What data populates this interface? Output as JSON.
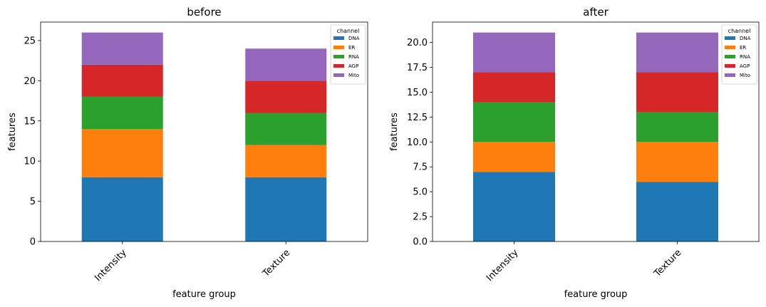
{
  "chart_data": [
    {
      "type": "bar",
      "stacked": true,
      "title": "before",
      "xlabel": "feature group",
      "ylabel": "features",
      "categories": [
        "Intensity",
        "Texture"
      ],
      "ylim": [
        0,
        27.3
      ],
      "yticks": [
        0,
        5,
        10,
        15,
        20,
        25
      ],
      "ytick_labels": [
        "0",
        "5",
        "10",
        "15",
        "20",
        "25"
      ],
      "legend_title": "channel",
      "legend_position": "top-right",
      "series": [
        {
          "name": "DNA",
          "color": "#1f77b4",
          "values": [
            8,
            8
          ]
        },
        {
          "name": "ER",
          "color": "#ff7f0e",
          "values": [
            6,
            4
          ]
        },
        {
          "name": "RNA",
          "color": "#2ca02c",
          "values": [
            4,
            4
          ]
        },
        {
          "name": "AGP",
          "color": "#d62728",
          "values": [
            4,
            4
          ]
        },
        {
          "name": "Mito",
          "color": "#9467bd",
          "values": [
            4,
            4
          ]
        }
      ]
    },
    {
      "type": "bar",
      "stacked": true,
      "title": "after",
      "xlabel": "feature group",
      "ylabel": "features",
      "categories": [
        "Intensity",
        "Texture"
      ],
      "ylim": [
        0,
        22.05
      ],
      "yticks": [
        0,
        2.5,
        5,
        7.5,
        10,
        12.5,
        15,
        17.5,
        20
      ],
      "ytick_labels": [
        "0.0",
        "2.5",
        "5.0",
        "7.5",
        "10.0",
        "12.5",
        "15.0",
        "17.5",
        "20.0"
      ],
      "legend_title": "channel",
      "legend_position": "top-right",
      "series": [
        {
          "name": "DNA",
          "color": "#1f77b4",
          "values": [
            7,
            6
          ]
        },
        {
          "name": "ER",
          "color": "#ff7f0e",
          "values": [
            3,
            4
          ]
        },
        {
          "name": "RNA",
          "color": "#2ca02c",
          "values": [
            4,
            3
          ]
        },
        {
          "name": "AGP",
          "color": "#d62728",
          "values": [
            3,
            4
          ]
        },
        {
          "name": "Mito",
          "color": "#9467bd",
          "values": [
            4,
            4
          ]
        }
      ]
    }
  ]
}
